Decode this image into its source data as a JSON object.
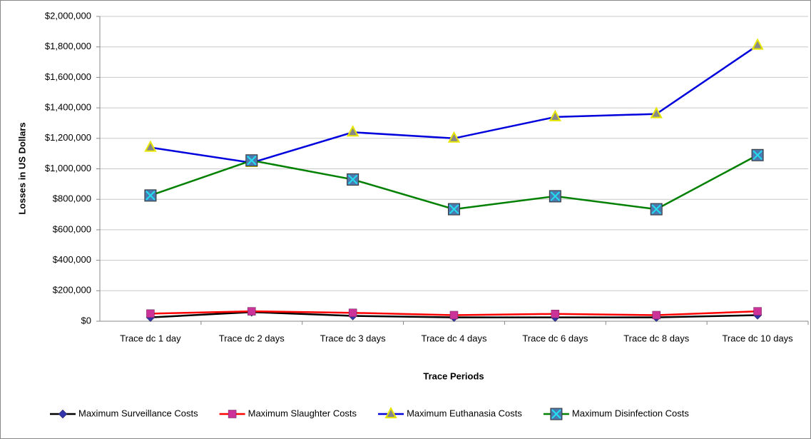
{
  "chart_data": {
    "type": "line",
    "x_label": "Trace Periods",
    "y_label": "Losses in US Dollars",
    "categories": [
      "Trace dc 1 day",
      "Trace dc 2 days",
      "Trace dc 3 days",
      "Trace dc 4 days",
      "Trace dc 6 days",
      "Trace dc 8 days",
      "Trace dc 10 days"
    ],
    "series": [
      {
        "name": "Maximum Surveillance Costs",
        "color": "#000000",
        "marker": "diamond",
        "marker_color": "#3333aa",
        "values": [
          25000,
          60000,
          35000,
          25000,
          25000,
          25000,
          40000
        ]
      },
      {
        "name": "Maximum Slaughter Costs",
        "color": "#ff0000",
        "marker": "square",
        "marker_color": "#cc3399",
        "values": [
          50000,
          65000,
          55000,
          40000,
          48000,
          40000,
          65000
        ]
      },
      {
        "name": "Maximum Euthanasia Costs",
        "color": "#0000dd",
        "marker": "triangle",
        "marker_color": "#e6e600",
        "values": [
          1140000,
          1040000,
          1240000,
          1200000,
          1340000,
          1360000,
          1810000
        ]
      },
      {
        "name": "Maximum Disinfection Costs",
        "color": "#008000",
        "marker": "xsquare",
        "marker_color": "#4a7ab0",
        "values": [
          825000,
          1055000,
          930000,
          735000,
          820000,
          735000,
          1090000
        ]
      }
    ],
    "ylim": [
      0,
      2000000
    ],
    "yticks": [
      {
        "value": 0,
        "label": "$0"
      },
      {
        "value": 200000,
        "label": "$200,000"
      },
      {
        "value": 400000,
        "label": "$400,000"
      },
      {
        "value": 600000,
        "label": "$600,000"
      },
      {
        "value": 800000,
        "label": "$800,000"
      },
      {
        "value": 1000000,
        "label": "$1,000,000"
      },
      {
        "value": 1200000,
        "label": "$1,200,000"
      },
      {
        "value": 1400000,
        "label": "$1,400,000"
      },
      {
        "value": 1600000,
        "label": "$1,600,000"
      },
      {
        "value": 1800000,
        "label": "$1,800,000"
      },
      {
        "value": 2000000,
        "label": "$2,000,000"
      }
    ],
    "grid": true,
    "legend": "bottom"
  }
}
